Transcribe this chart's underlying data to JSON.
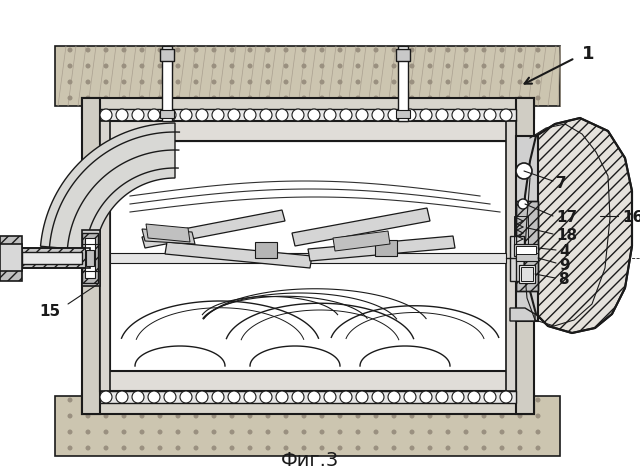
{
  "title": "Фиг.3",
  "label_1": "1",
  "label_4": "4",
  "label_7": "7",
  "label_8": "8",
  "label_9": "9",
  "label_15": "15",
  "label_16": "16",
  "label_17": "17",
  "label_18": "18",
  "bg_color": "#ffffff",
  "line_color": "#1a1a1a",
  "fig_width": 6.4,
  "fig_height": 4.76,
  "dpi": 100
}
